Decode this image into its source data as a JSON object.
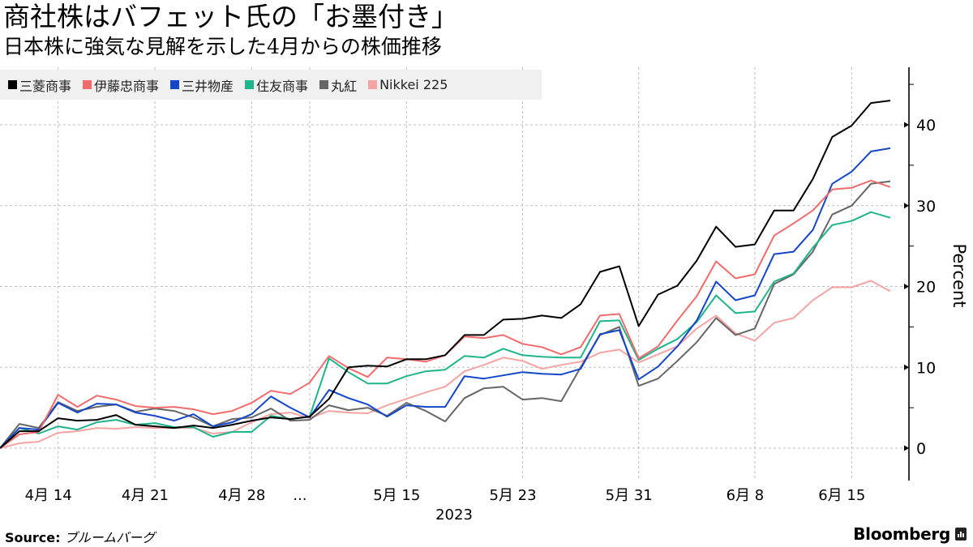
{
  "header": {
    "title": "商社株はバフェット氏の「お墨付き」",
    "subtitle": "日本株に強気な見解を示した4月からの株価推移"
  },
  "footer": {
    "source_label": "Source:",
    "source_text": "ブルームバーグ",
    "brand": "Bloomberg"
  },
  "chart_data": {
    "type": "line",
    "title": "商社株はバフェット氏の「お墨付き」",
    "subtitle": "日本株に強気な見解を示した4月からの株価推移",
    "xlabel": "2023",
    "ylabel": "Percent",
    "ylim": [
      -4,
      47
    ],
    "yticks": [
      0,
      10,
      20,
      30,
      40
    ],
    "grid": true,
    "legend_position": "top-left",
    "x_tick_labels": [
      {
        "label": "4月 14",
        "index": 3
      },
      {
        "label": "4月 21",
        "index": 8
      },
      {
        "label": "4月 28",
        "index": 13
      },
      {
        "label": "...",
        "index": 16
      },
      {
        "label": "5月 15",
        "index": 21
      },
      {
        "label": "5月 23",
        "index": 27
      },
      {
        "label": "5月 31",
        "index": 33
      },
      {
        "label": "6月 8",
        "index": 39
      },
      {
        "label": "6月 15",
        "index": 44
      }
    ],
    "x": [
      "4/11",
      "4/12",
      "4/13",
      "4/14",
      "4/17",
      "4/18",
      "4/19",
      "4/20",
      "4/21",
      "4/24",
      "4/25",
      "4/26",
      "4/27",
      "4/28",
      "5/1",
      "5/2",
      "5/8",
      "5/9",
      "5/10",
      "5/11",
      "5/12",
      "5/15",
      "5/16",
      "5/17",
      "5/18",
      "5/19",
      "5/22",
      "5/23",
      "5/24",
      "5/25",
      "5/26",
      "5/29",
      "5/30",
      "5/31",
      "6/1",
      "6/2",
      "6/5",
      "6/6",
      "6/7",
      "6/8",
      "6/9",
      "6/12",
      "6/13",
      "6/14",
      "6/15",
      "6/16",
      "6/19"
    ],
    "series": [
      {
        "name": "三菱商事",
        "color": "#000000",
        "values": [
          0,
          2.1,
          2.1,
          3.7,
          3.4,
          3.5,
          4.1,
          2.9,
          2.7,
          2.5,
          2.8,
          2.5,
          2.9,
          3.4,
          3.8,
          3.6,
          3.9,
          6.1,
          10.0,
          10.2,
          10.1,
          11.0,
          11.0,
          11.5,
          14.0,
          14.0,
          15.9,
          16.0,
          16.4,
          16.1,
          17.8,
          21.8,
          22.5,
          15.1,
          19.0,
          20.1,
          23.2,
          27.4,
          24.9,
          25.2,
          29.4,
          29.4,
          33.3,
          38.5,
          39.9,
          42.7,
          43.0
        ]
      },
      {
        "name": "伊藤忠商事",
        "color": "#f26b6b",
        "values": [
          0,
          1.7,
          2.0,
          6.6,
          5.1,
          6.5,
          6.0,
          5.2,
          5.0,
          5.1,
          4.8,
          4.2,
          4.6,
          5.6,
          7.1,
          6.7,
          8.1,
          11.4,
          9.9,
          8.8,
          11.2,
          11.0,
          10.7,
          11.5,
          13.8,
          13.6,
          14.0,
          12.9,
          12.5,
          11.6,
          12.5,
          16.4,
          16.6,
          11.1,
          12.6,
          15.8,
          18.8,
          23.1,
          21.0,
          21.5,
          26.3,
          27.8,
          29.4,
          32.0,
          32.2,
          33.1,
          32.3
        ]
      },
      {
        "name": "三井物産",
        "color": "#1446c8",
        "values": [
          0,
          2.5,
          2.3,
          5.6,
          4.4,
          5.5,
          5.4,
          4.4,
          4.0,
          3.4,
          4.2,
          2.7,
          3.2,
          4.2,
          6.4,
          5.0,
          3.8,
          7.2,
          6.2,
          5.4,
          3.9,
          5.3,
          5.1,
          5.1,
          8.9,
          8.6,
          9.0,
          9.4,
          9.2,
          9.1,
          9.8,
          14.1,
          14.6,
          8.5,
          10.1,
          12.6,
          15.8,
          20.6,
          18.3,
          18.9,
          24.0,
          24.3,
          27.0,
          32.7,
          34.2,
          36.7,
          37.1
        ]
      },
      {
        "name": "住友商事",
        "color": "#1eb48c",
        "values": [
          0,
          2.5,
          1.8,
          2.7,
          2.3,
          3.2,
          3.5,
          2.9,
          3.1,
          2.6,
          2.6,
          1.4,
          2.0,
          2.0,
          4.0,
          3.6,
          3.9,
          11.1,
          9.4,
          8.0,
          8.0,
          8.9,
          9.5,
          9.7,
          11.4,
          11.2,
          12.3,
          11.5,
          11.3,
          11.2,
          11.2,
          15.7,
          15.8,
          10.9,
          12.3,
          13.5,
          15.6,
          18.9,
          16.7,
          16.9,
          20.6,
          21.6,
          24.8,
          27.6,
          28.1,
          29.2,
          28.5
        ]
      },
      {
        "name": "丸紅",
        "color": "#666666",
        "values": [
          0,
          3.0,
          2.5,
          5.7,
          4.6,
          5.1,
          5.4,
          4.5,
          4.9,
          4.6,
          3.8,
          2.7,
          3.6,
          3.8,
          4.9,
          3.4,
          3.5,
          5.3,
          4.7,
          5.0,
          4.0,
          5.6,
          4.6,
          3.3,
          6.2,
          7.4,
          7.6,
          6.0,
          6.2,
          5.8,
          10.0,
          14.0,
          15.0,
          7.7,
          8.6,
          10.8,
          13.1,
          16.1,
          14.0,
          14.8,
          20.3,
          21.5,
          24.3,
          28.9,
          30.0,
          32.7,
          33.0
        ]
      },
      {
        "name": "Nikkei 225",
        "color": "#f5a3a3",
        "values": [
          0,
          0.6,
          0.8,
          1.9,
          2.1,
          2.5,
          2.4,
          2.6,
          2.5,
          2.5,
          2.5,
          1.8,
          2.0,
          3.2,
          4.2,
          4.4,
          3.7,
          4.6,
          4.4,
          4.3,
          5.3,
          6.1,
          6.9,
          7.6,
          9.5,
          10.3,
          11.2,
          10.8,
          9.8,
          10.3,
          10.7,
          11.8,
          12.2,
          10.6,
          11.6,
          12.6,
          14.8,
          16.4,
          14.2,
          13.3,
          15.5,
          16.1,
          18.3,
          19.9,
          19.9,
          20.7,
          19.4
        ]
      }
    ]
  }
}
